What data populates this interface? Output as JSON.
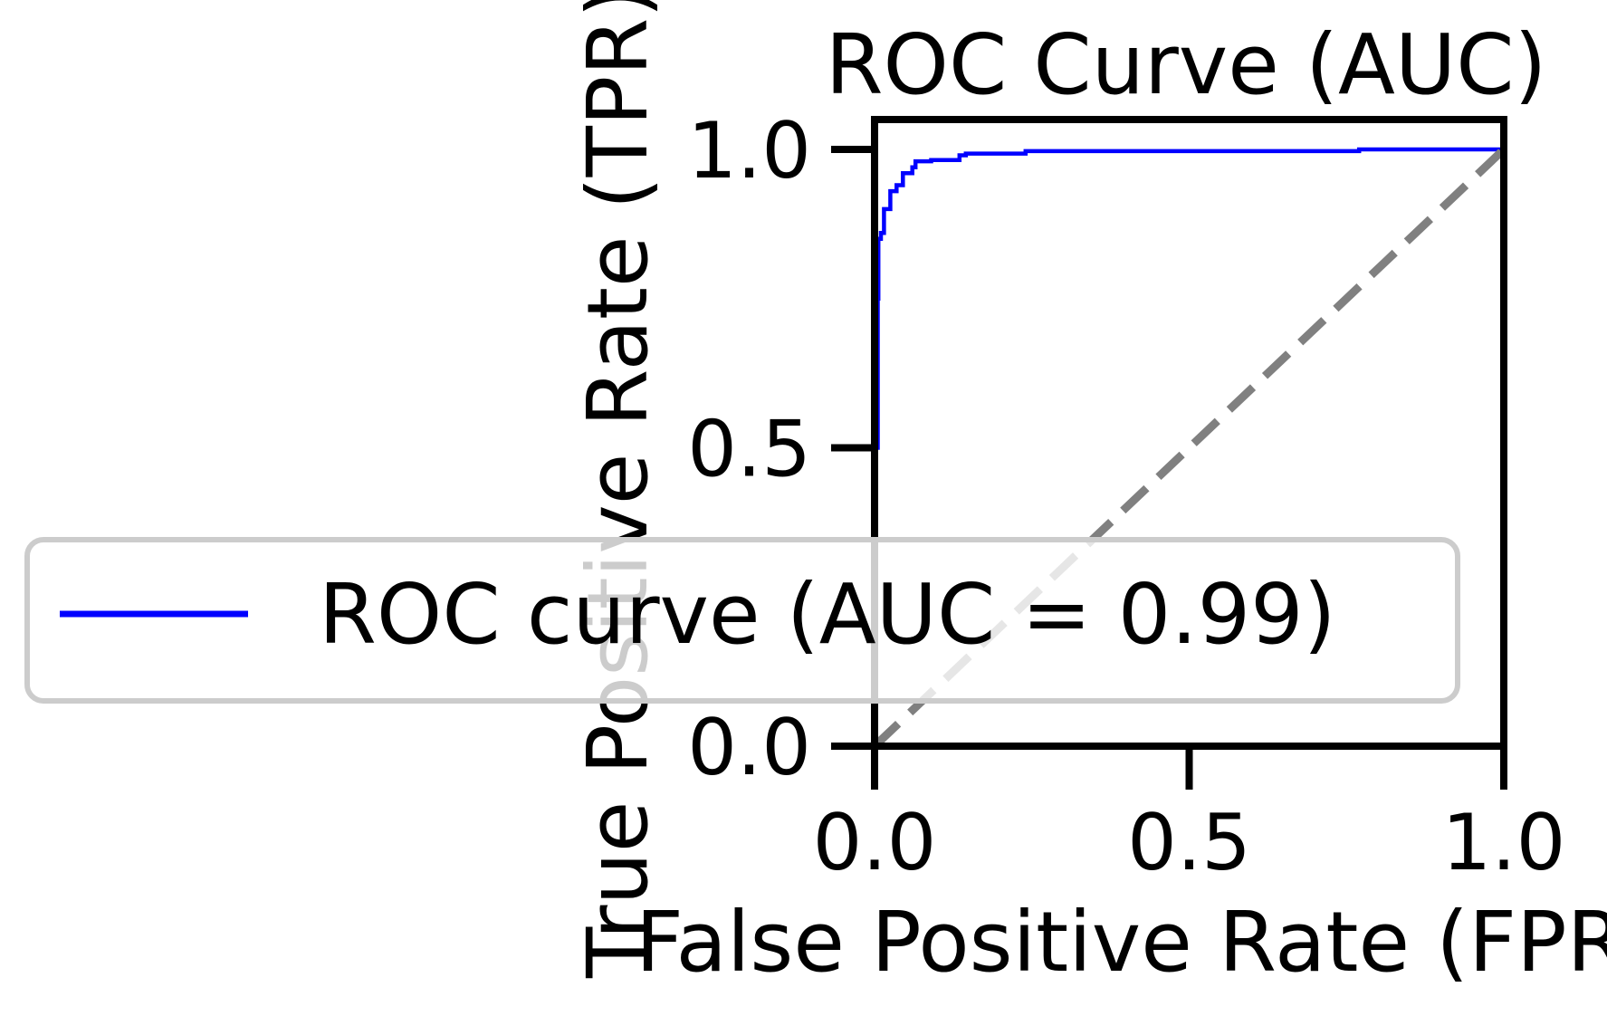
{
  "chart_data": {
    "type": "line",
    "title": "ROC Curve (AUC)",
    "xlabel": "False Positive Rate (FPR)",
    "ylabel": "True Positive Rate (TPR)",
    "xlim": [
      0,
      1
    ],
    "ylim": [
      0,
      1.05
    ],
    "x_ticks": [
      0.0,
      0.5,
      1.0
    ],
    "y_ticks": [
      0.0,
      0.5,
      1.0
    ],
    "x_tick_labels": [
      "0.0",
      "0.5",
      "1.0"
    ],
    "y_tick_labels": [
      "0.0",
      "0.5",
      "1.0"
    ],
    "grid": false,
    "legend_position": "center-left",
    "series": [
      {
        "name": "ROC curve (AUC = 0.99)",
        "color": "#0000ff",
        "style": "solid",
        "points": [
          [
            0.0,
            0.0
          ],
          [
            0.0,
            0.5
          ],
          [
            0.005,
            0.5
          ],
          [
            0.005,
            0.75
          ],
          [
            0.006,
            0.75
          ],
          [
            0.006,
            0.85
          ],
          [
            0.01,
            0.85
          ],
          [
            0.01,
            0.86
          ],
          [
            0.015,
            0.86
          ],
          [
            0.015,
            0.9
          ],
          [
            0.025,
            0.9
          ],
          [
            0.025,
            0.93
          ],
          [
            0.035,
            0.93
          ],
          [
            0.035,
            0.94
          ],
          [
            0.045,
            0.94
          ],
          [
            0.045,
            0.96
          ],
          [
            0.06,
            0.96
          ],
          [
            0.06,
            0.97
          ],
          [
            0.065,
            0.97
          ],
          [
            0.065,
            0.98
          ],
          [
            0.09,
            0.98
          ],
          [
            0.09,
            0.982
          ],
          [
            0.135,
            0.982
          ],
          [
            0.135,
            0.99
          ],
          [
            0.145,
            0.99
          ],
          [
            0.145,
            0.993
          ],
          [
            0.24,
            0.993
          ],
          [
            0.24,
            0.997
          ],
          [
            0.77,
            0.997
          ],
          [
            0.77,
            1.0
          ],
          [
            1.0,
            1.0
          ]
        ]
      },
      {
        "name": "",
        "color": "#808080",
        "style": "dashed",
        "points": [
          [
            0.0,
            0.0
          ],
          [
            1.0,
            1.0
          ]
        ]
      }
    ]
  }
}
